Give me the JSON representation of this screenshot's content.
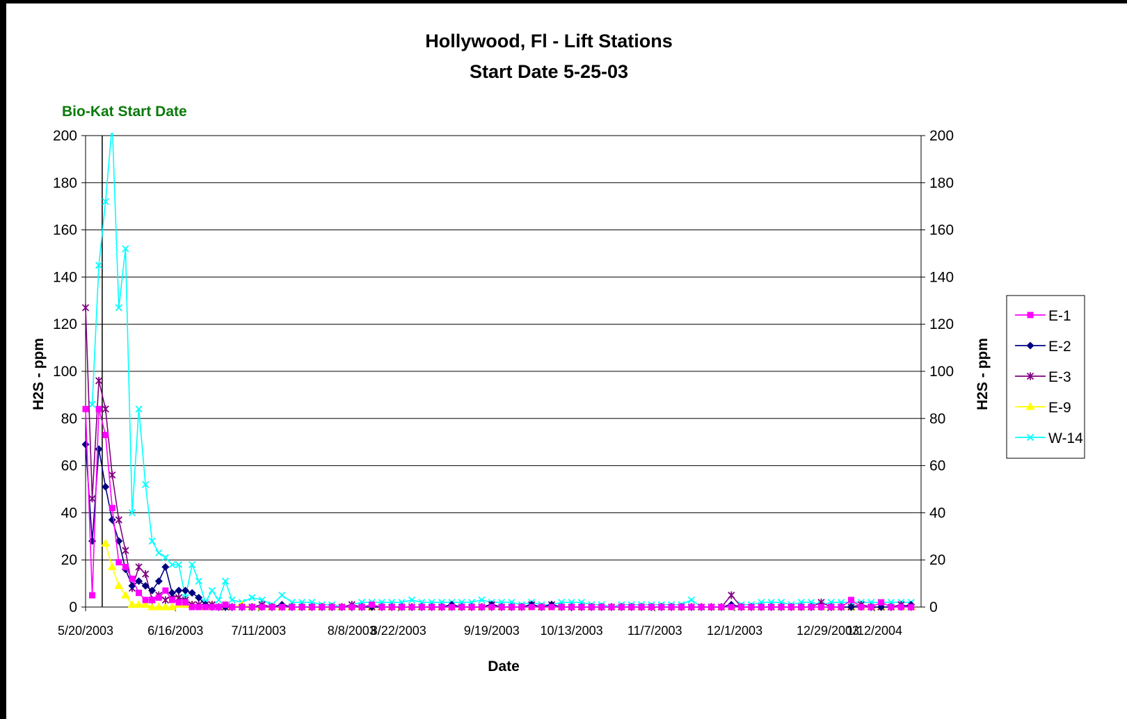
{
  "chart_data": {
    "type": "line",
    "title": "Hollywood, Fl - Lift Stations",
    "subtitle": "Start Date 5-25-03",
    "annotation": "Bio-Kat Start Date",
    "annotation_date": "5/25/2003",
    "xlabel": "Date",
    "ylabel": "H2S  - ppm",
    "ylabel_right": "H2S  - ppm",
    "ylim": [
      0,
      200
    ],
    "yticks": [
      0,
      20,
      40,
      60,
      80,
      100,
      120,
      140,
      160,
      180,
      200
    ],
    "xlim": [
      "5/20/2003",
      "1/26/2004"
    ],
    "xtick_dates": [
      "5/20/2003",
      "6/16/2003",
      "7/11/2003",
      "8/8/2003",
      "8/22/2003",
      "9/19/2003",
      "10/13/2003",
      "11/7/2003",
      "12/1/2003",
      "12/29/2003",
      "1/12/2004"
    ],
    "grid": true,
    "legend_position": "right",
    "x": [
      "5/20/2003",
      "5/22/2003",
      "5/24/2003",
      "5/26/2003",
      "5/28/2003",
      "5/30/2003",
      "6/1/2003",
      "6/3/2003",
      "6/5/2003",
      "6/7/2003",
      "6/9/2003",
      "6/11/2003",
      "6/13/2003",
      "6/15/2003",
      "6/17/2003",
      "6/19/2003",
      "6/21/2003",
      "6/23/2003",
      "6/25/2003",
      "6/27/2003",
      "6/29/2003",
      "7/1/2003",
      "7/3/2003",
      "7/6/2003",
      "7/9/2003",
      "7/12/2003",
      "7/15/2003",
      "7/18/2003",
      "7/21/2003",
      "7/24/2003",
      "7/27/2003",
      "7/30/2003",
      "8/2/2003",
      "8/5/2003",
      "8/8/2003",
      "8/11/2003",
      "8/14/2003",
      "8/17/2003",
      "8/20/2003",
      "8/23/2003",
      "8/26/2003",
      "8/29/2003",
      "9/1/2003",
      "9/4/2003",
      "9/7/2003",
      "9/10/2003",
      "9/13/2003",
      "9/16/2003",
      "9/19/2003",
      "9/22/2003",
      "9/25/2003",
      "9/28/2003",
      "10/1/2003",
      "10/4/2003",
      "10/7/2003",
      "10/10/2003",
      "10/13/2003",
      "10/16/2003",
      "10/19/2003",
      "10/22/2003",
      "10/25/2003",
      "10/28/2003",
      "10/31/2003",
      "11/3/2003",
      "11/6/2003",
      "11/9/2003",
      "11/12/2003",
      "11/15/2003",
      "11/18/2003",
      "11/21/2003",
      "11/24/2003",
      "11/27/2003",
      "11/30/2003",
      "12/3/2003",
      "12/6/2003",
      "12/9/2003",
      "12/12/2003",
      "12/15/2003",
      "12/18/2003",
      "12/21/2003",
      "12/24/2003",
      "12/27/2003",
      "12/30/2003",
      "1/2/2004",
      "1/5/2004",
      "1/8/2004",
      "1/11/2004",
      "1/14/2004",
      "1/17/2004",
      "1/20/2004",
      "1/23/2004"
    ],
    "series": [
      {
        "name": "E-1",
        "color": "#ff00ff",
        "marker": "square",
        "values": [
          84,
          5,
          84,
          73,
          42,
          19,
          17,
          12,
          6,
          3,
          3,
          4,
          7,
          3,
          2,
          2,
          0,
          0,
          0,
          0,
          0,
          1,
          0,
          0,
          0,
          0,
          0,
          0,
          0,
          0,
          0,
          0,
          0,
          0,
          0,
          0,
          1,
          0,
          0,
          0,
          0,
          0,
          0,
          0,
          0,
          0,
          0,
          0,
          0,
          0,
          0,
          0,
          0,
          0,
          0,
          0,
          0,
          0,
          0,
          0,
          0,
          0,
          0,
          0,
          0,
          0,
          0,
          0,
          0,
          0,
          0,
          0,
          0,
          0,
          0,
          0,
          0,
          0,
          0,
          0,
          0,
          0,
          0,
          0,
          3,
          0,
          0,
          2,
          0,
          0,
          0
        ]
      },
      {
        "name": "E-2",
        "color": "#000080",
        "marker": "diamond",
        "values": [
          69,
          28,
          67,
          51,
          37,
          28,
          16,
          9,
          11,
          9,
          7,
          11,
          17,
          6,
          7,
          7,
          6,
          4,
          1,
          0,
          0,
          0,
          0,
          0,
          0,
          0,
          0,
          1,
          0,
          0,
          0,
          0,
          0,
          0,
          0,
          0,
          0,
          0,
          0,
          0,
          0,
          0,
          0,
          0,
          1,
          0,
          0,
          0,
          1,
          0,
          0,
          0,
          1,
          0,
          1,
          0,
          0,
          0,
          0,
          0,
          0,
          0,
          0,
          0,
          0,
          0,
          0,
          0,
          0,
          0,
          0,
          0,
          1,
          0,
          0,
          0,
          0,
          0,
          0,
          0,
          0,
          0,
          0,
          0,
          0,
          0,
          0,
          0,
          0,
          0,
          1
        ]
      },
      {
        "name": "E-3",
        "color": "#800080",
        "marker": "star",
        "values": [
          127,
          46,
          96,
          84,
          56,
          37,
          24,
          8,
          17,
          14,
          3,
          5,
          3,
          5,
          4,
          3,
          1,
          1,
          1,
          1,
          0,
          0,
          0,
          0,
          0,
          1,
          0,
          0,
          0,
          0,
          0,
          0,
          0,
          0,
          1,
          0,
          0,
          0,
          0,
          0,
          0,
          0,
          0,
          0,
          0,
          0,
          0,
          0,
          1,
          0,
          0,
          0,
          1,
          0,
          1,
          0,
          0,
          0,
          0,
          0,
          0,
          0,
          0,
          0,
          0,
          0,
          0,
          0,
          0,
          0,
          0,
          0,
          5,
          0,
          0,
          0,
          0,
          0,
          0,
          0,
          0,
          2,
          0,
          0,
          0,
          1,
          0,
          0,
          0,
          1,
          0
        ]
      },
      {
        "name": "E-9",
        "color": "#ffff00",
        "marker": "triangle",
        "values": [
          null,
          null,
          null,
          27,
          17,
          9,
          5,
          1,
          1,
          1,
          0,
          0,
          0,
          0,
          1,
          1,
          1,
          0,
          0,
          1,
          0,
          1,
          0,
          1,
          0,
          0,
          0,
          0,
          0,
          0,
          0,
          0,
          0,
          0,
          0,
          0,
          0,
          0,
          0,
          0,
          0,
          0,
          0,
          0,
          0,
          0,
          0,
          0,
          0,
          0,
          0,
          0,
          0,
          0,
          0,
          0,
          0,
          0,
          0,
          0,
          0,
          0,
          0,
          0,
          0,
          0,
          0,
          0,
          0,
          0,
          0,
          0,
          0,
          0,
          0,
          0,
          0,
          0,
          0,
          0,
          0,
          0,
          0,
          0,
          0,
          0,
          0,
          0,
          0,
          0,
          0
        ]
      },
      {
        "name": "W-14",
        "color": "#00ffff",
        "marker": "x",
        "values": [
          null,
          86,
          145,
          172,
          205,
          127,
          152,
          40,
          84,
          52,
          28,
          23,
          21,
          18,
          18,
          4,
          18,
          11,
          2,
          7,
          3,
          11,
          3,
          2,
          4,
          3,
          1,
          5,
          2,
          2,
          2,
          1,
          1,
          0,
          1,
          2,
          2,
          2,
          2,
          2,
          3,
          2,
          2,
          2,
          2,
          2,
          2,
          3,
          2,
          2,
          2,
          1,
          2,
          1,
          1,
          2,
          2,
          2,
          1,
          1,
          0,
          1,
          1,
          1,
          1,
          1,
          1,
          1,
          3,
          0,
          0,
          0,
          0,
          1,
          1,
          2,
          2,
          2,
          1,
          2,
          2,
          1,
          2,
          2,
          2,
          2,
          2,
          2,
          2,
          2,
          2
        ]
      }
    ]
  }
}
